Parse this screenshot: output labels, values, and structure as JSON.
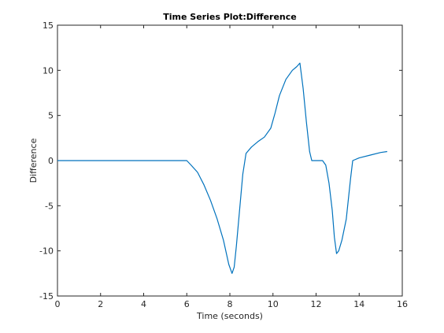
{
  "colors": {
    "line": "#0072BD",
    "axes": "#262626",
    "background": "#ffffff"
  },
  "chart_data": {
    "type": "line",
    "title": "Time Series Plot:Difference",
    "xlabel": "Time (seconds)",
    "ylabel": "Difference",
    "xlim": [
      0,
      16
    ],
    "ylim": [
      -15,
      15
    ],
    "xticks": [
      0,
      2,
      4,
      6,
      8,
      10,
      12,
      14,
      16
    ],
    "yticks": [
      -15,
      -10,
      -5,
      0,
      5,
      10,
      15
    ],
    "xtick_labels": [
      "0",
      "2",
      "4",
      "6",
      "8",
      "10",
      "12",
      "14",
      "16"
    ],
    "ytick_labels": [
      "-15",
      "-10",
      "-5",
      "0",
      "5",
      "10",
      "15"
    ],
    "grid": false,
    "box": true,
    "series": [
      {
        "x": [
          0,
          6.0,
          6.2,
          6.5,
          6.8,
          7.1,
          7.4,
          7.7,
          7.95,
          8.1,
          8.2,
          8.3,
          8.45,
          8.6,
          8.75,
          9.0,
          9.3,
          9.6,
          9.9,
          10.1,
          10.3,
          10.6,
          10.9,
          11.1,
          11.25,
          11.4,
          11.55,
          11.7,
          11.8,
          12.0,
          12.3,
          12.45,
          12.6,
          12.75,
          12.85,
          12.95,
          13.05,
          13.2,
          13.4,
          13.6,
          13.7,
          14.0,
          14.5,
          15.0,
          15.3
        ],
        "y": [
          0,
          0,
          -0.5,
          -1.3,
          -2.7,
          -4.4,
          -6.4,
          -8.8,
          -11.5,
          -12.5,
          -11.8,
          -9.5,
          -5.5,
          -1.5,
          0.8,
          1.5,
          2.1,
          2.6,
          3.6,
          5.3,
          7.2,
          9.0,
          10.0,
          10.4,
          10.8,
          8.0,
          4.3,
          1.0,
          0,
          0,
          0,
          -0.5,
          -2.5,
          -5.5,
          -8.5,
          -10.3,
          -10.0,
          -8.8,
          -6.5,
          -2.0,
          0,
          0.3,
          0.6,
          0.9,
          1.0
        ]
      }
    ]
  }
}
